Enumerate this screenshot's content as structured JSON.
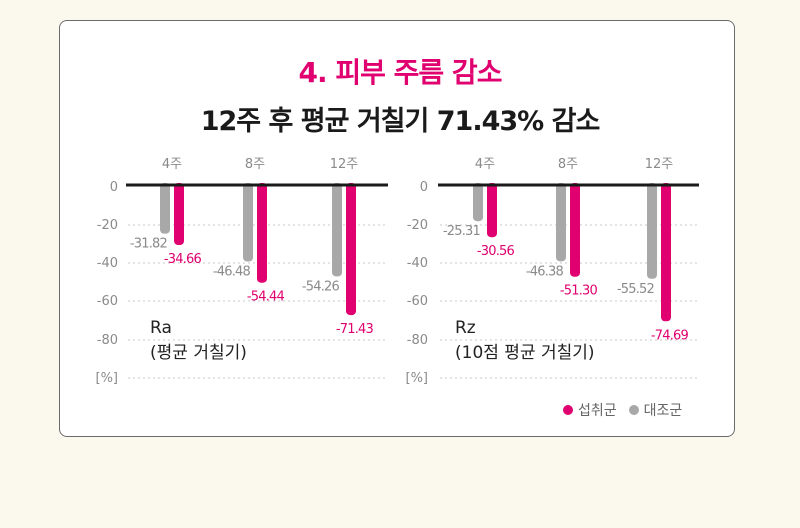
{
  "title": "4. 피부 주름 감소",
  "subtitle": "12주 후 평균 거칠기 71.43% 감소",
  "colors": {
    "accent": "#e0006f",
    "control": "#a8a8a8",
    "axis": "#1a1a1a",
    "tick": "#8a8a8a"
  },
  "legend": {
    "treatment_label": "섭취군",
    "control_label": "대조군"
  },
  "chart_data": [
    {
      "type": "bar",
      "categories": [
        "4주",
        "8주",
        "12주"
      ],
      "series": [
        {
          "name": "대조군",
          "values": [
            -31.82,
            -46.48,
            -54.26
          ],
          "labels": [
            "-31.82",
            "-46.48",
            "-54.26"
          ]
        },
        {
          "name": "섭취군",
          "values": [
            -34.66,
            -54.44,
            -71.43
          ],
          "labels": [
            "-34.66",
            "-54.44",
            "-71.43"
          ]
        }
      ],
      "ylim": [
        -100,
        0
      ],
      "yticks": [
        "0",
        "-20",
        "-40",
        "-60",
        "-80",
        "[%]"
      ],
      "label_line1": "Ra",
      "label_line2": "(평균 거칠기)"
    },
    {
      "type": "bar",
      "categories": [
        "4주",
        "8주",
        "12주"
      ],
      "series": [
        {
          "name": "대조군",
          "values": [
            -25.31,
            -46.38,
            -55.52
          ],
          "labels": [
            "-25.31",
            "-46.38",
            "-55.52"
          ]
        },
        {
          "name": "섭취군",
          "values": [
            -30.56,
            -51.3,
            -74.69
          ],
          "labels": [
            "-30.56",
            "-51.30",
            "-74.69"
          ]
        }
      ],
      "ylim": [
        -100,
        0
      ],
      "yticks": [
        "0",
        "-20",
        "-40",
        "-60",
        "-80",
        "[%]"
      ],
      "label_line1": "Rz",
      "label_line2": "(10점 평균 거칠기)"
    }
  ]
}
